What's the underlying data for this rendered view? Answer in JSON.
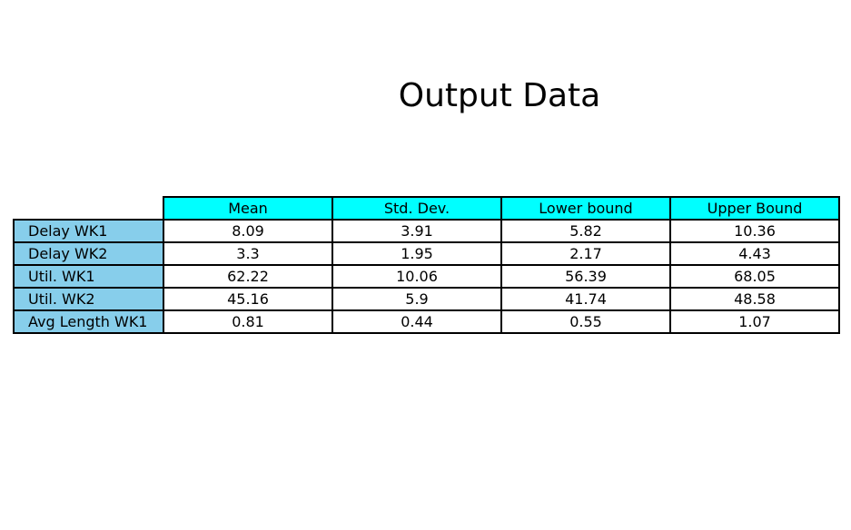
{
  "chart_data": {
    "type": "table",
    "title": "Output Data",
    "columns": [
      "Mean",
      "Std. Dev.",
      "Lower bound",
      "Upper Bound"
    ],
    "rows": [
      {
        "label": "Delay WK1",
        "values": [
          "8.09",
          "3.91",
          "5.82",
          "10.36"
        ]
      },
      {
        "label": "Delay WK2",
        "values": [
          "3.3",
          "1.95",
          "2.17",
          "4.43"
        ]
      },
      {
        "label": "Util. WK1",
        "values": [
          "62.22",
          "10.06",
          "56.39",
          "68.05"
        ]
      },
      {
        "label": "Util. WK2",
        "values": [
          "45.16",
          "5.9",
          "41.74",
          "48.58"
        ]
      },
      {
        "label": "Avg Length WK1",
        "values": [
          "0.81",
          "0.44",
          "0.55",
          "1.07"
        ]
      }
    ]
  },
  "colors": {
    "column_header_bg": "#00ffff",
    "row_header_bg": "#87ceeb",
    "cell_bg": "#ffffff",
    "border": "#000000"
  }
}
